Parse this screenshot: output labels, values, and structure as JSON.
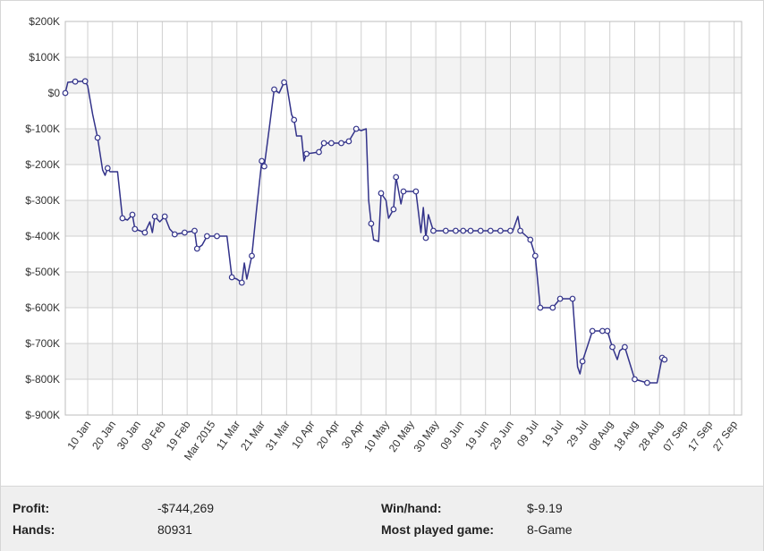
{
  "chart_data": {
    "type": "line",
    "title": "",
    "xlabel": "",
    "ylabel": "",
    "ylim": [
      -900000,
      200000
    ],
    "y_ticks": [
      {
        "value": 200000,
        "label": "$200K"
      },
      {
        "value": 100000,
        "label": "$100K"
      },
      {
        "value": 0,
        "label": "$0"
      },
      {
        "value": -100000,
        "label": "$-100K"
      },
      {
        "value": -200000,
        "label": "$-200K"
      },
      {
        "value": -300000,
        "label": "$-300K"
      },
      {
        "value": -400000,
        "label": "$-400K"
      },
      {
        "value": -500000,
        "label": "$-500K"
      },
      {
        "value": -600000,
        "label": "$-600K"
      },
      {
        "value": -700000,
        "label": "$-700K"
      },
      {
        "value": -800000,
        "label": "$-800K"
      },
      {
        "value": -900000,
        "label": "$-900K"
      }
    ],
    "x_range": [
      "2015-01-01",
      "2015-09-30"
    ],
    "x_ticks": [
      {
        "date": "2015-01-10",
        "label": "10 Jan"
      },
      {
        "date": "2015-01-20",
        "label": "20 Jan"
      },
      {
        "date": "2015-01-30",
        "label": "30 Jan"
      },
      {
        "date": "2015-02-09",
        "label": "09 Feb"
      },
      {
        "date": "2015-02-19",
        "label": "19 Feb"
      },
      {
        "date": "2015-03-01",
        "label": "Mar 2015"
      },
      {
        "date": "2015-03-11",
        "label": "11 Mar"
      },
      {
        "date": "2015-03-21",
        "label": "21 Mar"
      },
      {
        "date": "2015-03-31",
        "label": "31 Mar"
      },
      {
        "date": "2015-04-10",
        "label": "10 Apr"
      },
      {
        "date": "2015-04-20",
        "label": "20 Apr"
      },
      {
        "date": "2015-04-30",
        "label": "30 Apr"
      },
      {
        "date": "2015-05-10",
        "label": "10 May"
      },
      {
        "date": "2015-05-20",
        "label": "20 May"
      },
      {
        "date": "2015-05-30",
        "label": "30 May"
      },
      {
        "date": "2015-06-09",
        "label": "09 Jun"
      },
      {
        "date": "2015-06-19",
        "label": "19 Jun"
      },
      {
        "date": "2015-06-29",
        "label": "29 Jun"
      },
      {
        "date": "2015-07-09",
        "label": "09 Jul"
      },
      {
        "date": "2015-07-19",
        "label": "19 Jul"
      },
      {
        "date": "2015-07-29",
        "label": "29 Jul"
      },
      {
        "date": "2015-08-08",
        "label": "08 Aug"
      },
      {
        "date": "2015-08-18",
        "label": "18 Aug"
      },
      {
        "date": "2015-08-28",
        "label": "28 Aug"
      },
      {
        "date": "2015-09-07",
        "label": "07 Sep"
      },
      {
        "date": "2015-09-17",
        "label": "17 Sep"
      },
      {
        "date": "2015-09-27",
        "label": "27 Sep"
      }
    ],
    "grid": true,
    "line_color": "#33338a",
    "series": [
      {
        "points": [
          [
            "2015-01-01",
            0
          ],
          [
            "2015-01-02",
            30000
          ],
          [
            "2015-01-05",
            32000
          ],
          [
            "2015-01-09",
            33000
          ],
          [
            "2015-01-10",
            20000
          ],
          [
            "2015-01-12",
            -60000
          ],
          [
            "2015-01-14",
            -125000
          ],
          [
            "2015-01-16",
            -215000
          ],
          [
            "2015-01-17",
            -230000
          ],
          [
            "2015-01-18",
            -210000
          ],
          [
            "2015-01-19",
            -220000
          ],
          [
            "2015-01-22",
            -220000
          ],
          [
            "2015-01-24",
            -350000
          ],
          [
            "2015-01-26",
            -355000
          ],
          [
            "2015-01-28",
            -340000
          ],
          [
            "2015-01-29",
            -380000
          ],
          [
            "2015-01-31",
            -385000
          ],
          [
            "2015-02-02",
            -390000
          ],
          [
            "2015-02-04",
            -360000
          ],
          [
            "2015-02-05",
            -390000
          ],
          [
            "2015-02-06",
            -345000
          ],
          [
            "2015-02-08",
            -360000
          ],
          [
            "2015-02-10",
            -345000
          ],
          [
            "2015-02-12",
            -380000
          ],
          [
            "2015-02-14",
            -395000
          ],
          [
            "2015-02-18",
            -390000
          ],
          [
            "2015-02-22",
            -385000
          ],
          [
            "2015-02-23",
            -435000
          ],
          [
            "2015-02-25",
            -425000
          ],
          [
            "2015-02-27",
            -400000
          ],
          [
            "2015-03-03",
            -400000
          ],
          [
            "2015-03-07",
            -400000
          ],
          [
            "2015-03-09",
            -515000
          ],
          [
            "2015-03-11",
            -520000
          ],
          [
            "2015-03-13",
            -530000
          ],
          [
            "2015-03-14",
            -475000
          ],
          [
            "2015-03-15",
            -520000
          ],
          [
            "2015-03-17",
            -455000
          ],
          [
            "2015-03-19",
            -320000
          ],
          [
            "2015-03-21",
            -190000
          ],
          [
            "2015-03-22",
            -205000
          ],
          [
            "2015-03-24",
            -100000
          ],
          [
            "2015-03-26",
            10000
          ],
          [
            "2015-03-28",
            0
          ],
          [
            "2015-03-30",
            30000
          ],
          [
            "2015-03-31",
            25000
          ],
          [
            "2015-04-02",
            -60000
          ],
          [
            "2015-04-03",
            -75000
          ],
          [
            "2015-04-04",
            -120000
          ],
          [
            "2015-04-06",
            -120000
          ],
          [
            "2015-04-07",
            -190000
          ],
          [
            "2015-04-08",
            -170000
          ],
          [
            "2015-04-13",
            -165000
          ],
          [
            "2015-04-15",
            -140000
          ],
          [
            "2015-04-18",
            -140000
          ],
          [
            "2015-04-22",
            -140000
          ],
          [
            "2015-04-25",
            -135000
          ],
          [
            "2015-04-28",
            -100000
          ],
          [
            "2015-04-30",
            -105000
          ],
          [
            "2015-05-02",
            -100000
          ],
          [
            "2015-05-03",
            -300000
          ],
          [
            "2015-05-04",
            -365000
          ],
          [
            "2015-05-05",
            -410000
          ],
          [
            "2015-05-07",
            -415000
          ],
          [
            "2015-05-08",
            -280000
          ],
          [
            "2015-05-10",
            -300000
          ],
          [
            "2015-05-11",
            -350000
          ],
          [
            "2015-05-13",
            -325000
          ],
          [
            "2015-05-14",
            -235000
          ],
          [
            "2015-05-16",
            -310000
          ],
          [
            "2015-05-17",
            -275000
          ],
          [
            "2015-05-22",
            -275000
          ],
          [
            "2015-05-24",
            -390000
          ],
          [
            "2015-05-25",
            -320000
          ],
          [
            "2015-05-26",
            -405000
          ],
          [
            "2015-05-27",
            -340000
          ],
          [
            "2015-05-29",
            -385000
          ],
          [
            "2015-06-05",
            -385000
          ],
          [
            "2015-06-10",
            -385000
          ],
          [
            "2015-06-15",
            -385000
          ],
          [
            "2015-06-20",
            -385000
          ],
          [
            "2015-06-25",
            -385000
          ],
          [
            "2015-06-30",
            -385000
          ],
          [
            "2015-07-02",
            -345000
          ],
          [
            "2015-07-03",
            -385000
          ],
          [
            "2015-07-07",
            -410000
          ],
          [
            "2015-07-09",
            -455000
          ],
          [
            "2015-07-11",
            -600000
          ],
          [
            "2015-07-16",
            -600000
          ],
          [
            "2015-07-19",
            -575000
          ],
          [
            "2015-07-24",
            -575000
          ],
          [
            "2015-07-26",
            -765000
          ],
          [
            "2015-07-27",
            -785000
          ],
          [
            "2015-07-28",
            -750000
          ],
          [
            "2015-08-01",
            -665000
          ],
          [
            "2015-08-05",
            -665000
          ],
          [
            "2015-08-07",
            -665000
          ],
          [
            "2015-08-09",
            -710000
          ],
          [
            "2015-08-11",
            -745000
          ],
          [
            "2015-08-12",
            -720000
          ],
          [
            "2015-08-14",
            -710000
          ],
          [
            "2015-08-18",
            -800000
          ],
          [
            "2015-08-23",
            -810000
          ],
          [
            "2015-08-27",
            -810000
          ],
          [
            "2015-08-29",
            -740000
          ],
          [
            "2015-08-30",
            -745000
          ]
        ],
        "markers": [
          [
            "2015-01-01",
            0
          ],
          [
            "2015-01-05",
            32000
          ],
          [
            "2015-01-09",
            33000
          ],
          [
            "2015-01-14",
            -125000
          ],
          [
            "2015-01-18",
            -210000
          ],
          [
            "2015-01-24",
            -350000
          ],
          [
            "2015-01-28",
            -340000
          ],
          [
            "2015-01-29",
            -380000
          ],
          [
            "2015-02-02",
            -390000
          ],
          [
            "2015-02-06",
            -345000
          ],
          [
            "2015-02-10",
            -345000
          ],
          [
            "2015-02-14",
            -395000
          ],
          [
            "2015-02-18",
            -390000
          ],
          [
            "2015-02-22",
            -385000
          ],
          [
            "2015-02-23",
            -435000
          ],
          [
            "2015-02-27",
            -400000
          ],
          [
            "2015-03-03",
            -400000
          ],
          [
            "2015-03-09",
            -515000
          ],
          [
            "2015-03-13",
            -530000
          ],
          [
            "2015-03-17",
            -455000
          ],
          [
            "2015-03-21",
            -190000
          ],
          [
            "2015-03-22",
            -205000
          ],
          [
            "2015-03-26",
            10000
          ],
          [
            "2015-03-30",
            30000
          ],
          [
            "2015-04-03",
            -75000
          ],
          [
            "2015-04-08",
            -170000
          ],
          [
            "2015-04-13",
            -165000
          ],
          [
            "2015-04-15",
            -140000
          ],
          [
            "2015-04-18",
            -140000
          ],
          [
            "2015-04-22",
            -140000
          ],
          [
            "2015-04-25",
            -135000
          ],
          [
            "2015-04-28",
            -100000
          ],
          [
            "2015-05-04",
            -365000
          ],
          [
            "2015-05-08",
            -280000
          ],
          [
            "2015-05-13",
            -325000
          ],
          [
            "2015-05-14",
            -235000
          ],
          [
            "2015-05-17",
            -275000
          ],
          [
            "2015-05-22",
            -275000
          ],
          [
            "2015-05-26",
            -405000
          ],
          [
            "2015-05-29",
            -385000
          ],
          [
            "2015-06-03",
            -385000
          ],
          [
            "2015-06-07",
            -385000
          ],
          [
            "2015-06-10",
            -385000
          ],
          [
            "2015-06-13",
            -385000
          ],
          [
            "2015-06-17",
            -385000
          ],
          [
            "2015-06-21",
            -385000
          ],
          [
            "2015-06-25",
            -385000
          ],
          [
            "2015-06-29",
            -385000
          ],
          [
            "2015-07-03",
            -385000
          ],
          [
            "2015-07-07",
            -410000
          ],
          [
            "2015-07-09",
            -455000
          ],
          [
            "2015-07-11",
            -600000
          ],
          [
            "2015-07-16",
            -600000
          ],
          [
            "2015-07-19",
            -575000
          ],
          [
            "2015-07-24",
            -575000
          ],
          [
            "2015-07-28",
            -750000
          ],
          [
            "2015-08-01",
            -665000
          ],
          [
            "2015-08-05",
            -665000
          ],
          [
            "2015-08-07",
            -665000
          ],
          [
            "2015-08-09",
            -710000
          ],
          [
            "2015-08-14",
            -710000
          ],
          [
            "2015-08-18",
            -800000
          ],
          [
            "2015-08-23",
            -810000
          ],
          [
            "2015-08-29",
            -740000
          ],
          [
            "2015-08-30",
            -745000
          ]
        ]
      }
    ]
  },
  "stats": {
    "profit_label": "Profit:",
    "profit_value": "-$744,269",
    "hands_label": "Hands:",
    "hands_value": "80931",
    "win_hand_label": "Win/hand:",
    "win_hand_value": "$-9.19",
    "most_played_label": "Most played game:",
    "most_played_value": "8-Game"
  }
}
